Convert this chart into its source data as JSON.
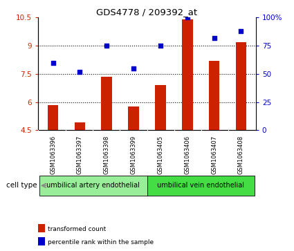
{
  "title": "GDS4778 / 209392_at",
  "samples": [
    "GSM1063396",
    "GSM1063397",
    "GSM1063398",
    "GSM1063399",
    "GSM1063405",
    "GSM1063406",
    "GSM1063407",
    "GSM1063408"
  ],
  "transformed_count": [
    5.85,
    4.9,
    7.35,
    5.75,
    6.9,
    10.42,
    8.2,
    9.2
  ],
  "percentile_rank": [
    60,
    52,
    75,
    55,
    75,
    100,
    82,
    88
  ],
  "ylim_left": [
    4.5,
    10.5
  ],
  "ylim_right": [
    0,
    100
  ],
  "yticks_left": [
    4.5,
    6.0,
    7.5,
    9.0,
    10.5
  ],
  "ytick_labels_left": [
    "4.5",
    "6",
    "7.5",
    "9",
    "10.5"
  ],
  "yticks_right": [
    0,
    25,
    50,
    75,
    100
  ],
  "ytick_labels_right": [
    "0",
    "25",
    "50",
    "75",
    "100%"
  ],
  "bar_color": "#cc2200",
  "dot_color": "#0000cc",
  "cell_type_groups": [
    {
      "label": "umbilical artery endothelial",
      "start": 0,
      "end": 3,
      "color": "#99ee99"
    },
    {
      "label": "umbilical vein endothelial",
      "start": 4,
      "end": 7,
      "color": "#44dd44"
    }
  ],
  "legend_items": [
    {
      "label": "transformed count",
      "color": "#cc2200"
    },
    {
      "label": "percentile rank within the sample",
      "color": "#0000cc"
    }
  ],
  "cell_type_label": "cell type",
  "background_color": "#ffffff",
  "tick_area_color": "#c8c8c8",
  "dotted_lines": [
    6.0,
    7.5,
    9.0
  ],
  "bar_width": 0.4
}
